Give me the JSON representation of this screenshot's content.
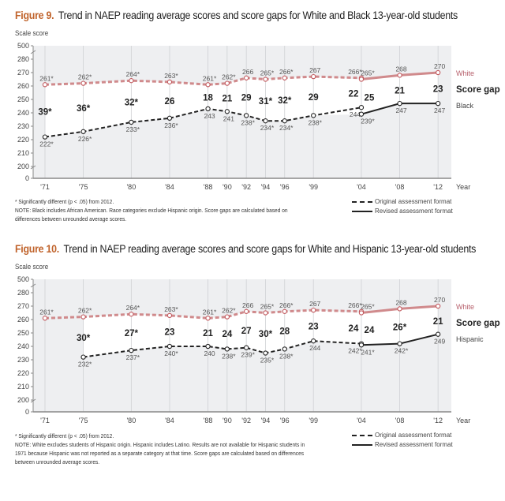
{
  "chart_data": [
    {
      "type": "line",
      "figure_label": "Figure 9.",
      "title": "Trend in NAEP reading average scores and score gaps for White and Black 13-year-old students",
      "ylabel": "Scale score",
      "xlabel": "Year",
      "yticks": [
        500,
        280,
        270,
        260,
        250,
        240,
        230,
        220,
        210,
        200,
        0
      ],
      "ylim": [
        200,
        280
      ],
      "axis_break": true,
      "x_tick_labels": [
        "'71",
        "'75",
        "'80",
        "'84",
        "'88",
        "'90",
        "'92",
        "'94",
        "'96",
        "'99",
        "'04",
        "'08",
        "'12"
      ],
      "x_tick_years": [
        1971,
        1975,
        1980,
        1984,
        1988,
        1990,
        1992,
        1994,
        1996,
        1999,
        2004,
        2008,
        2012
      ],
      "colors": {
        "White": "#d08a8c",
        "White_label": "#b65f6b",
        "other": "#222222",
        "plot_bg": "#eeeff1",
        "gap_area": "#ffffff"
      },
      "series": [
        {
          "name": "White",
          "points": [
            {
              "year": 1971,
              "value": 261,
              "label": "261*",
              "format": "original"
            },
            {
              "year": 1975,
              "value": 262,
              "label": "262*",
              "format": "original"
            },
            {
              "year": 1980,
              "value": 264,
              "label": "264*",
              "format": "original"
            },
            {
              "year": 1984,
              "value": 263,
              "label": "263*",
              "format": "original"
            },
            {
              "year": 1988,
              "value": 261,
              "label": "261*",
              "format": "original"
            },
            {
              "year": 1990,
              "value": 262,
              "label": "262*",
              "format": "original"
            },
            {
              "year": 1992,
              "value": 266,
              "label": "266",
              "format": "original"
            },
            {
              "year": 1994,
              "value": 265,
              "label": "265*",
              "format": "original"
            },
            {
              "year": 1996,
              "value": 266,
              "label": "266*",
              "format": "original"
            },
            {
              "year": 1999,
              "value": 267,
              "label": "267",
              "format": "original"
            },
            {
              "year": 2004,
              "value": 266,
              "label": "266*",
              "format": "original"
            },
            {
              "year": 2004,
              "value": 265,
              "label": "265*",
              "format": "revised"
            },
            {
              "year": 2008,
              "value": 268,
              "label": "268",
              "format": "revised"
            },
            {
              "year": 2012,
              "value": 270,
              "label": "270",
              "format": "revised"
            }
          ]
        },
        {
          "name": "Black",
          "points": [
            {
              "year": 1971,
              "value": 222,
              "label": "222*",
              "format": "original"
            },
            {
              "year": 1975,
              "value": 226,
              "label": "226*",
              "format": "original"
            },
            {
              "year": 1980,
              "value": 233,
              "label": "233*",
              "format": "original"
            },
            {
              "year": 1984,
              "value": 236,
              "label": "236*",
              "format": "original"
            },
            {
              "year": 1988,
              "value": 243,
              "label": "243",
              "format": "original"
            },
            {
              "year": 1990,
              "value": 241,
              "label": "241",
              "format": "original"
            },
            {
              "year": 1992,
              "value": 238,
              "label": "238*",
              "format": "original"
            },
            {
              "year": 1994,
              "value": 234,
              "label": "234*",
              "format": "original"
            },
            {
              "year": 1996,
              "value": 234,
              "label": "234*",
              "format": "original"
            },
            {
              "year": 1999,
              "value": 238,
              "label": "238*",
              "format": "original"
            },
            {
              "year": 2004,
              "value": 244,
              "label": "244",
              "format": "original"
            },
            {
              "year": 2004,
              "value": 239,
              "label": "239*",
              "format": "revised"
            },
            {
              "year": 2008,
              "value": 247,
              "label": "247",
              "format": "revised"
            },
            {
              "year": 2012,
              "value": 247,
              "label": "247",
              "format": "revised"
            }
          ]
        }
      ],
      "score_gap_label": "Score gap",
      "score_gaps": [
        "39*",
        "36*",
        "32*",
        "26",
        "18",
        "21",
        "29",
        "31*",
        "32*",
        "29",
        "22",
        "25",
        "21",
        "23"
      ],
      "footnote": "* Significantly different (p < .05) from 2012.",
      "note": "NOTE: Black includes African American. Race categories exclude Hispanic origin. Score gaps are calculated based on differences between unrounded average scores.",
      "legend": {
        "original": "Original assessment format",
        "revised": "Revised assessment format"
      }
    },
    {
      "type": "line",
      "figure_label": "Figure 10.",
      "title": "Trend in NAEP reading average scores and score gaps for White and Hispanic 13-year-old students",
      "ylabel": "Scale score",
      "xlabel": "Year",
      "yticks": [
        500,
        280,
        270,
        260,
        250,
        240,
        230,
        220,
        210,
        200,
        0
      ],
      "ylim": [
        200,
        280
      ],
      "axis_break": true,
      "x_tick_labels": [
        "'71",
        "'75",
        "'80",
        "'84",
        "'88",
        "'90",
        "'92",
        "'94",
        "'96",
        "'99",
        "'04",
        "'08",
        "'12"
      ],
      "x_tick_years": [
        1971,
        1975,
        1980,
        1984,
        1988,
        1990,
        1992,
        1994,
        1996,
        1999,
        2004,
        2008,
        2012
      ],
      "colors": {
        "White": "#d08a8c",
        "White_label": "#b65f6b",
        "other": "#222222",
        "plot_bg": "#eeeff1",
        "gap_area": "#ffffff"
      },
      "series": [
        {
          "name": "White",
          "points": [
            {
              "year": 1971,
              "value": 261,
              "label": "261*",
              "format": "original"
            },
            {
              "year": 1975,
              "value": 262,
              "label": "262*",
              "format": "original"
            },
            {
              "year": 1980,
              "value": 264,
              "label": "264*",
              "format": "original"
            },
            {
              "year": 1984,
              "value": 263,
              "label": "263*",
              "format": "original"
            },
            {
              "year": 1988,
              "value": 261,
              "label": "261*",
              "format": "original"
            },
            {
              "year": 1990,
              "value": 262,
              "label": "262*",
              "format": "original"
            },
            {
              "year": 1992,
              "value": 266,
              "label": "266",
              "format": "original"
            },
            {
              "year": 1994,
              "value": 265,
              "label": "265*",
              "format": "original"
            },
            {
              "year": 1996,
              "value": 266,
              "label": "266*",
              "format": "original"
            },
            {
              "year": 1999,
              "value": 267,
              "label": "267",
              "format": "original"
            },
            {
              "year": 2004,
              "value": 266,
              "label": "266*",
              "format": "original"
            },
            {
              "year": 2004,
              "value": 265,
              "label": "265*",
              "format": "revised"
            },
            {
              "year": 2008,
              "value": 268,
              "label": "268",
              "format": "revised"
            },
            {
              "year": 2012,
              "value": 270,
              "label": "270",
              "format": "revised"
            }
          ]
        },
        {
          "name": "Hispanic",
          "points": [
            {
              "year": 1975,
              "value": 232,
              "label": "232*",
              "format": "original"
            },
            {
              "year": 1980,
              "value": 237,
              "label": "237*",
              "format": "original"
            },
            {
              "year": 1984,
              "value": 240,
              "label": "240*",
              "format": "original"
            },
            {
              "year": 1988,
              "value": 240,
              "label": "240",
              "format": "original"
            },
            {
              "year": 1990,
              "value": 238,
              "label": "238*",
              "format": "original"
            },
            {
              "year": 1992,
              "value": 239,
              "label": "239*",
              "format": "original"
            },
            {
              "year": 1994,
              "value": 235,
              "label": "235*",
              "format": "original"
            },
            {
              "year": 1996,
              "value": 238,
              "label": "238*",
              "format": "original"
            },
            {
              "year": 1999,
              "value": 244,
              "label": "244",
              "format": "original"
            },
            {
              "year": 2004,
              "value": 242,
              "label": "242*",
              "format": "original"
            },
            {
              "year": 2004,
              "value": 241,
              "label": "241*",
              "format": "revised"
            },
            {
              "year": 2008,
              "value": 242,
              "label": "242*",
              "format": "revised"
            },
            {
              "year": 2012,
              "value": 249,
              "label": "249",
              "format": "revised"
            }
          ]
        }
      ],
      "score_gap_label": "Score gap",
      "score_gaps": [
        "30*",
        "27*",
        "23",
        "21",
        "24",
        "27",
        "30*",
        "28",
        "23",
        "24",
        "24",
        "26*",
        "21"
      ],
      "footnote": "* Significantly different (p < .05) from 2012.",
      "note": "NOTE: White excludes students of Hispanic origin. Hispanic includes Latino. Results are not available for Hispanic students in 1971 because Hispanic was not reported as a separate category at that time. Score gaps are calculated based on differences between unrounded average scores.",
      "legend": {
        "original": "Original assessment format",
        "revised": "Revised assessment format"
      }
    }
  ]
}
